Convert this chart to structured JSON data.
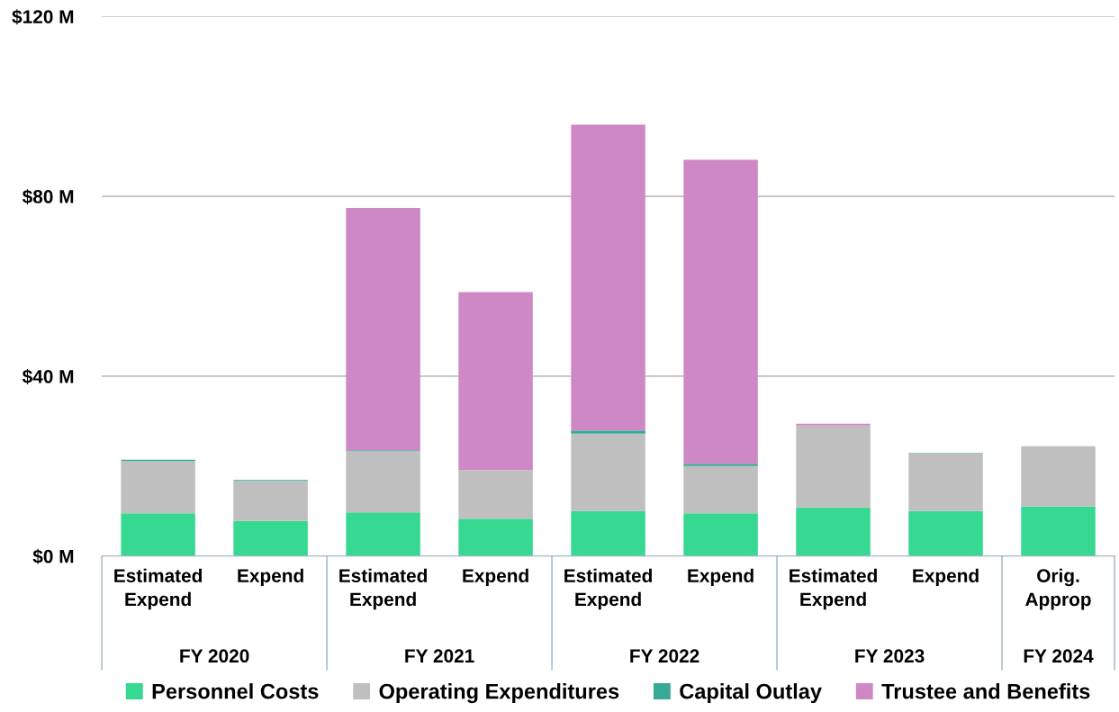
{
  "chart_data": {
    "type": "bar",
    "stacked": true,
    "categories": [
      "Estimated Expend",
      "Expend",
      "Estimated Expend",
      "Expend",
      "Estimated Expend",
      "Expend",
      "Estimated Expend",
      "Expend",
      "Orig. Approp"
    ],
    "annotations": [
      "FY 2020",
      "FY 2021",
      "FY 2022",
      "FY 2023",
      "FY 2024"
    ],
    "series": [
      {
        "name": "Personnel Costs",
        "color": "#37d892",
        "values": [
          9.5,
          7.8,
          9.7,
          8.3,
          10.0,
          9.5,
          10.8,
          10.0,
          11.0
        ]
      },
      {
        "name": "Operating Expenditures",
        "color": "#bfbfbf",
        "values": [
          11.6,
          8.9,
          13.6,
          10.8,
          17.2,
          10.5,
          18.2,
          12.8,
          13.4
        ]
      },
      {
        "name": "Capital Outlay",
        "color": "#3aa896",
        "values": [
          0.3,
          0.2,
          0.2,
          null,
          0.7,
          0.5,
          0,
          0.1,
          0
        ]
      },
      {
        "name": "Trustee and Benefits",
        "color": "#cf88c6",
        "values": [
          0,
          0,
          53.9,
          39.6,
          68.0,
          67.6,
          0.4,
          0,
          0
        ]
      }
    ],
    "ylim": [
      0,
      120
    ],
    "yticks": [
      {
        "value": 0,
        "label": "$0 M"
      },
      {
        "value": 40,
        "label": "$40 M"
      },
      {
        "value": 80,
        "label": "$80 M"
      },
      {
        "value": 120,
        "label": "$120 M"
      }
    ],
    "grid": "y",
    "legend": "bottom"
  }
}
